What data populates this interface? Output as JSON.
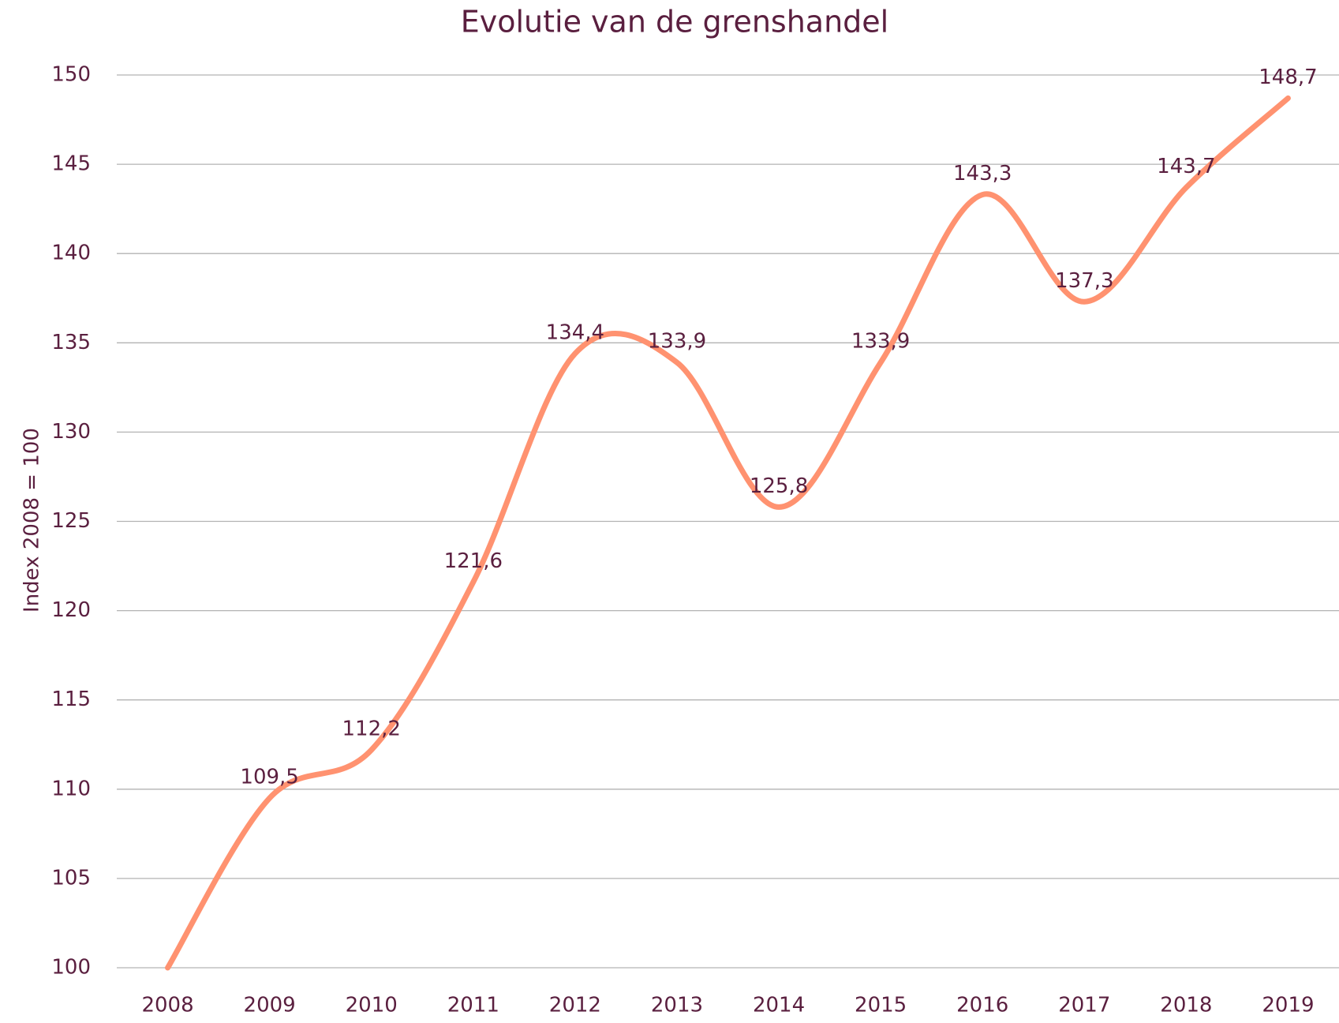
{
  "chart_data": {
    "type": "line",
    "title": "Evolutie van de grenshandel",
    "y_axis_label": "Index 2008 = 100",
    "categories": [
      "2008",
      "2009",
      "2010",
      "2011",
      "2012",
      "2013",
      "2014",
      "2015",
      "2016",
      "2017",
      "2018",
      "2019"
    ],
    "values": [
      100,
      109.5,
      112.2,
      121.6,
      134.4,
      133.9,
      125.8,
      133.9,
      143.3,
      137.3,
      143.7,
      148.7
    ],
    "value_labels": [
      null,
      "109,5",
      "112,2",
      "121,6",
      "134,4",
      "133,9",
      "125,8",
      "133,9",
      "143,3",
      "137,3",
      "143,7",
      "148,7"
    ],
    "color": "#ff9270",
    "smooth": true,
    "ylim": [
      100,
      150
    ],
    "yticks": [
      100,
      105,
      110,
      115,
      120,
      125,
      130,
      135,
      140,
      145,
      150
    ],
    "grid": true
  }
}
